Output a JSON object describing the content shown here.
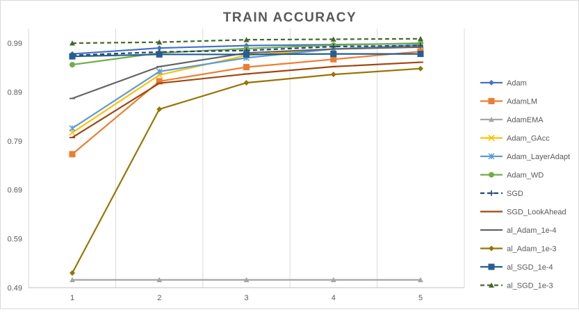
{
  "chart_data": {
    "type": "line",
    "title": "TRAIN ACCURACY",
    "xlabel": "",
    "ylabel": "",
    "x": [
      1,
      2,
      3,
      4,
      5
    ],
    "xticks": [
      "1",
      "2",
      "3",
      "4",
      "5"
    ],
    "ylim": [
      0.49,
      1.02
    ],
    "yticks": [
      0.49,
      0.59,
      0.69,
      0.79,
      0.89,
      0.99
    ],
    "ytick_labels": [
      "0.49",
      "0.59",
      "0.69",
      "0.79",
      "0.89",
      "0.99"
    ],
    "grid": "vertical",
    "legend_position": "right",
    "series": [
      {
        "name": "Adam",
        "color": "#4472C4",
        "marker": "diamond",
        "dash": "solid",
        "values": [
          0.968,
          0.98,
          0.985,
          0.987,
          0.989
        ]
      },
      {
        "name": "AdamLM",
        "color": "#ED7D31",
        "marker": "square",
        "dash": "solid",
        "values": [
          0.763,
          0.912,
          0.941,
          0.957,
          0.973
        ]
      },
      {
        "name": "AdamEMA",
        "color": "#A5A5A5",
        "marker": "triangle",
        "dash": "solid",
        "values": [
          0.506,
          0.506,
          0.506,
          0.506,
          0.506
        ]
      },
      {
        "name": "Adam_GAcc",
        "color": "#FFC000",
        "marker": "x",
        "dash": "solid",
        "values": [
          0.807,
          0.925,
          0.965,
          0.978,
          0.985
        ]
      },
      {
        "name": "Adam_LayerAdapt",
        "color": "#5B9BD5",
        "marker": "star",
        "dash": "solid",
        "values": [
          0.816,
          0.932,
          0.96,
          0.978,
          0.986
        ]
      },
      {
        "name": "Adam_WD",
        "color": "#70AD47",
        "marker": "circle",
        "dash": "solid",
        "values": [
          0.946,
          0.97,
          0.979,
          0.986,
          0.99
        ]
      },
      {
        "name": "SGD",
        "color": "#264478",
        "marker": "plus",
        "dash": "dashed",
        "values": [
          0.965,
          0.972,
          0.975,
          0.983,
          0.985
        ]
      },
      {
        "name": "SGD_LookAhead",
        "color": "#9E480E",
        "marker": "dash",
        "dash": "solid",
        "values": [
          0.797,
          0.908,
          0.927,
          0.942,
          0.951
        ]
      },
      {
        "name": "al_Adam_1e-4",
        "color": "#636363",
        "marker": "dash",
        "dash": "solid",
        "values": [
          0.877,
          0.942,
          0.97,
          0.978,
          0.982
        ]
      },
      {
        "name": "al_Adam_1e-3",
        "color": "#997300",
        "marker": "diamond",
        "dash": "solid",
        "values": [
          0.52,
          0.855,
          0.909,
          0.926,
          0.938
        ]
      },
      {
        "name": "al_SGD_1e-4",
        "color": "#255E91",
        "marker": "square",
        "dash": "solid",
        "values": [
          0.963,
          0.967,
          0.967,
          0.968,
          0.968
        ]
      },
      {
        "name": "al_SGD_1e-3",
        "color": "#43682B",
        "marker": "triangle",
        "dash": "dashed",
        "values": [
          0.99,
          0.992,
          0.997,
          0.998,
          0.999
        ]
      }
    ]
  }
}
